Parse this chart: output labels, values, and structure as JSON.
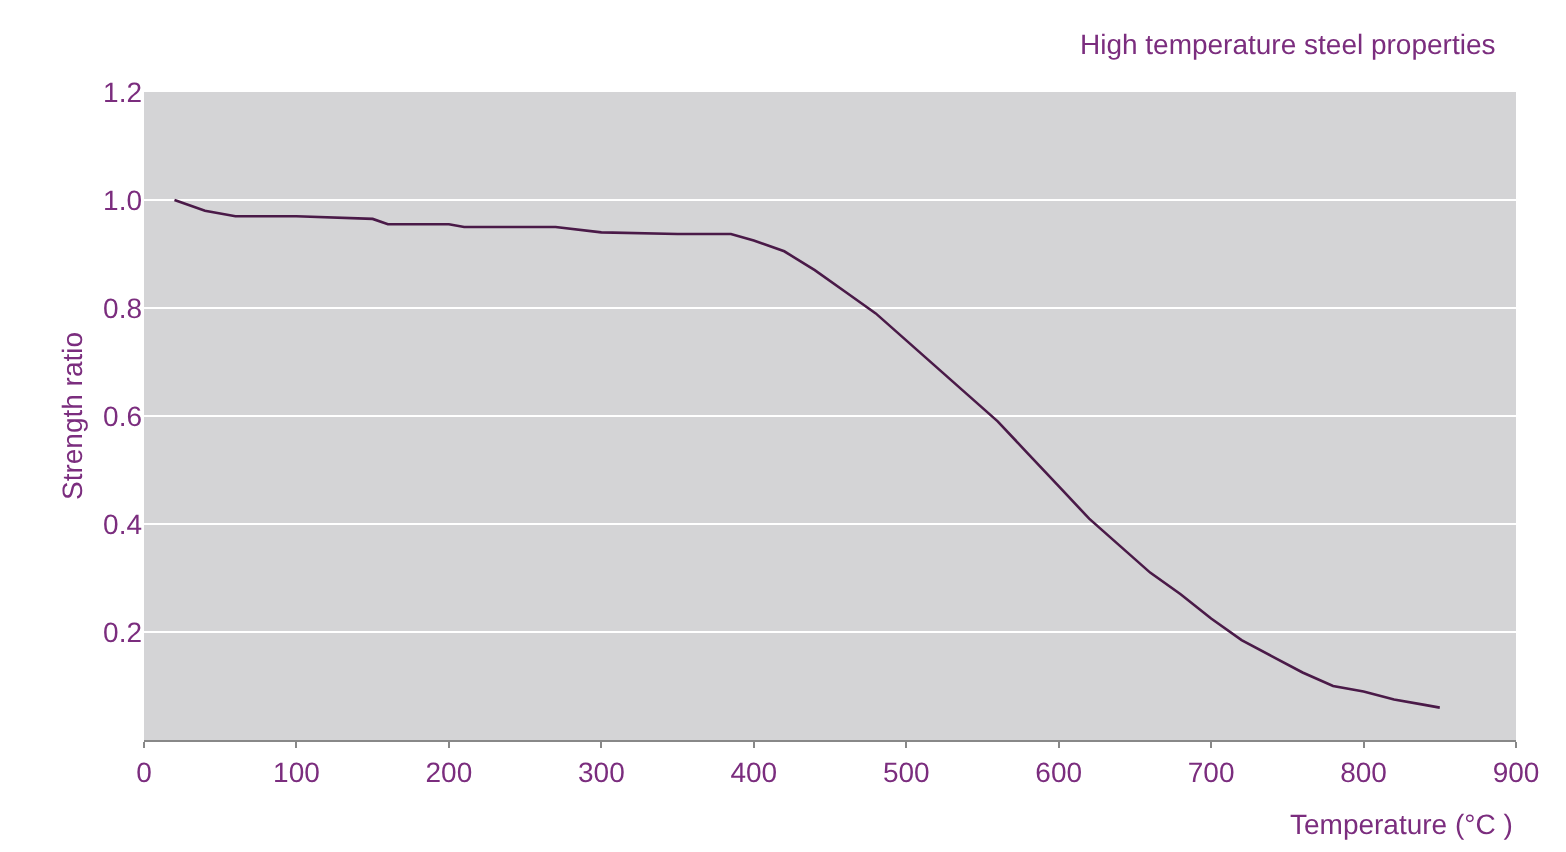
{
  "chart_data": {
    "type": "line",
    "title": "High temperature steel properties",
    "xlabel": "Temperature (°C )",
    "ylabel": "Strength ratio",
    "x": [
      20,
      40,
      60,
      100,
      150,
      160,
      200,
      210,
      270,
      300,
      350,
      385,
      400,
      420,
      440,
      460,
      480,
      500,
      520,
      540,
      560,
      580,
      600,
      620,
      640,
      660,
      680,
      700,
      720,
      740,
      760,
      780,
      800,
      820,
      840,
      850
    ],
    "series": [
      {
        "color": "#4a1a48",
        "values": [
          1.0,
          0.98,
          0.97,
          0.97,
          0.965,
          0.955,
          0.955,
          0.95,
          0.95,
          0.94,
          0.937,
          0.937,
          0.925,
          0.905,
          0.87,
          0.83,
          0.79,
          0.74,
          0.69,
          0.64,
          0.59,
          0.53,
          0.47,
          0.41,
          0.36,
          0.31,
          0.27,
          0.225,
          0.185,
          0.155,
          0.125,
          0.1,
          0.09,
          0.075,
          0.065,
          0.06
        ]
      }
    ],
    "xlim": [
      0,
      900
    ],
    "xticks": [
      0,
      100,
      200,
      300,
      400,
      500,
      600,
      700,
      800,
      900
    ],
    "ylim": [
      0,
      1.2
    ],
    "yticks": [
      0.2,
      0.4,
      0.6,
      0.8,
      {
        "value": 1,
        "label": "1.0"
      },
      1.2
    ],
    "grid": "y",
    "marker": "none",
    "line_style": "solid"
  }
}
